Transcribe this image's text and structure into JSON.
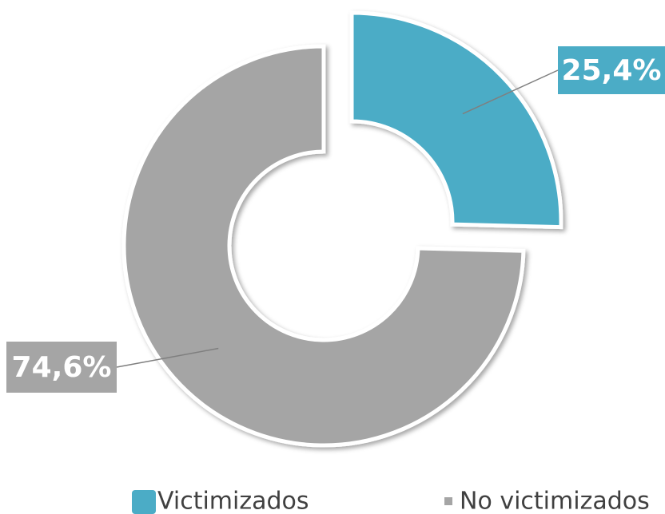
{
  "chart_data": {
    "type": "donut",
    "categories": [
      "Victimizados",
      "No victimizados"
    ],
    "values": [
      25.4,
      74.6
    ],
    "value_labels": [
      "25,4%",
      "74,6%"
    ],
    "colors": [
      "#4bacc6",
      "#a5a5a5"
    ]
  }
}
